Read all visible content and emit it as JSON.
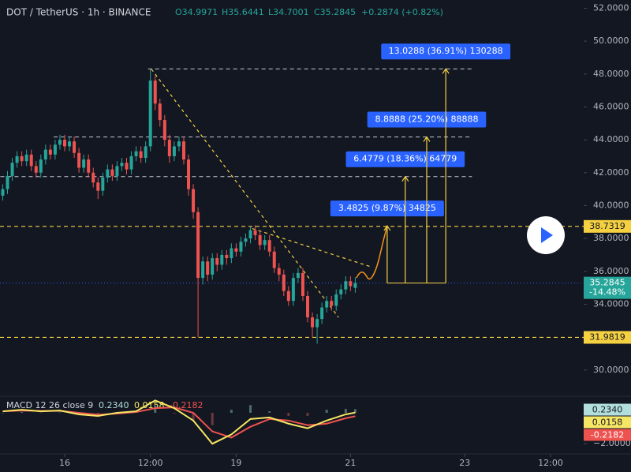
{
  "chart_data": {
    "type": "candlestick",
    "header": {
      "symbol": "DOT / TetherUS · 1h · BINANCE",
      "open": "O34.9971",
      "high": "H35.6441",
      "low": "L34.7001",
      "close": "C35.2845",
      "change": "+0.2874 (+0.82%)"
    },
    "up_color": "#26a69a",
    "down_color": "#ef5350",
    "x": [
      -26,
      -24,
      -22,
      -20,
      -18,
      -16,
      -14,
      -12,
      -10,
      -8,
      -6,
      -4,
      -2,
      0,
      2,
      4,
      6,
      8,
      10,
      12,
      14,
      16,
      18,
      20,
      22,
      24,
      26,
      28,
      30,
      32,
      34,
      36,
      38,
      40,
      42,
      44,
      46,
      48,
      50,
      52,
      54,
      56,
      58,
      60,
      62,
      64,
      66,
      68,
      70,
      72,
      74,
      76,
      78,
      80,
      82,
      84,
      86,
      88,
      90,
      92,
      94,
      96,
      98,
      100,
      102,
      104,
      106,
      108,
      110,
      112,
      114,
      116,
      118,
      120,
      122
    ],
    "open": [
      40.6,
      41.0,
      41.8,
      42.6,
      43.0,
      42.7,
      43.1,
      42.4,
      42.0,
      42.8,
      43.4,
      43.1,
      43.7,
      44.0,
      43.6,
      43.9,
      43.2,
      42.3,
      42.8,
      42.0,
      41.4,
      40.9,
      41.7,
      42.2,
      41.8,
      42.4,
      42.6,
      42.2,
      43.0,
      43.3,
      42.9,
      43.6,
      47.6,
      46.2,
      45.2,
      44.0,
      43.0,
      43.6,
      43.9,
      42.8,
      41.0,
      39.6,
      35.6,
      36.6,
      35.8,
      36.8,
      36.4,
      37.0,
      36.8,
      37.4,
      37.2,
      37.8,
      38.0,
      38.5,
      38.2,
      37.6,
      37.9,
      37.2,
      36.2,
      35.8,
      34.8,
      34.2,
      35.6,
      35.9,
      34.5,
      33.2,
      32.6,
      33.1,
      33.8,
      34.2,
      33.9,
      34.6,
      34.9,
      35.4,
      34.9971
    ],
    "high": [
      41.3,
      42.1,
      42.9,
      43.3,
      43.3,
      43.4,
      43.4,
      42.7,
      43.1,
      43.7,
      43.7,
      44.0,
      44.3,
      44.3,
      44.2,
      44.2,
      43.5,
      43.1,
      43.1,
      42.3,
      41.7,
      42.0,
      42.5,
      42.5,
      42.7,
      42.9,
      42.9,
      43.3,
      43.6,
      43.6,
      43.9,
      48.3,
      47.9,
      46.5,
      45.5,
      44.3,
      43.9,
      44.2,
      44.2,
      43.1,
      41.3,
      39.9,
      36.9,
      36.9,
      37.1,
      37.1,
      37.3,
      37.3,
      37.7,
      37.7,
      38.1,
      38.3,
      38.73,
      38.8,
      38.5,
      38.2,
      38.2,
      37.5,
      36.5,
      36.1,
      35.1,
      35.9,
      36.2,
      36.2,
      34.8,
      33.5,
      33.4,
      34.1,
      34.5,
      34.5,
      34.9,
      35.2,
      35.7,
      35.7,
      35.6441
    ],
    "low": [
      40.3,
      40.7,
      41.5,
      42.3,
      42.4,
      42.4,
      42.1,
      41.7,
      41.7,
      42.5,
      42.8,
      42.8,
      43.4,
      43.3,
      43.3,
      42.9,
      42.0,
      42.0,
      41.7,
      41.1,
      40.4,
      40.6,
      41.4,
      41.5,
      41.5,
      42.1,
      41.9,
      41.9,
      42.7,
      42.6,
      42.6,
      43.3,
      45.8,
      44.8,
      43.6,
      42.6,
      42.7,
      43.3,
      42.5,
      40.6,
      39.2,
      31.98,
      35.2,
      35.4,
      35.5,
      36.0,
      36.1,
      36.4,
      36.5,
      36.9,
      36.9,
      37.5,
      37.7,
      37.9,
      37.3,
      37.3,
      36.9,
      35.9,
      35.4,
      34.5,
      33.9,
      33.9,
      35.3,
      34.2,
      32.9,
      31.98,
      31.6,
      32.8,
      33.5,
      33.6,
      33.6,
      34.3,
      34.6,
      34.8,
      34.7001
    ],
    "close": [
      41.0,
      41.8,
      42.6,
      43.0,
      42.7,
      43.1,
      42.4,
      42.0,
      42.8,
      43.4,
      43.1,
      43.7,
      44.0,
      43.6,
      43.9,
      43.2,
      42.3,
      42.8,
      42.0,
      41.4,
      40.9,
      41.7,
      42.2,
      41.8,
      42.4,
      42.6,
      42.2,
      43.0,
      43.3,
      42.9,
      43.6,
      47.6,
      46.2,
      45.2,
      44.0,
      43.0,
      43.6,
      43.9,
      42.8,
      41.0,
      39.6,
      35.6,
      36.6,
      35.8,
      36.8,
      36.4,
      37.0,
      36.8,
      37.4,
      37.2,
      37.8,
      38.0,
      38.5,
      38.2,
      37.6,
      37.9,
      37.2,
      36.2,
      35.8,
      34.8,
      34.2,
      35.6,
      35.9,
      34.5,
      33.2,
      32.6,
      33.1,
      33.8,
      34.2,
      33.9,
      34.6,
      34.9,
      35.4,
      35.1,
      35.2845
    ],
    "xlim": [
      -27.15,
      217.9
    ],
    "xticks": [
      {
        "value": 0,
        "label": "16"
      },
      {
        "value": 36,
        "label": "12:00"
      },
      {
        "value": 72,
        "label": "19"
      },
      {
        "value": 120,
        "label": "21"
      },
      {
        "value": 168,
        "label": "23"
      },
      {
        "value": 204,
        "label": "12:00"
      }
    ],
    "ylim": [
      28.5,
      52.5
    ],
    "yticks": [
      {
        "value": 30,
        "label": "30.0000"
      },
      {
        "value": 32,
        "label": "32.0000"
      },
      {
        "value": 34,
        "label": "34.0000"
      },
      {
        "value": 36,
        "label": "36.0000"
      },
      {
        "value": 38,
        "label": "38.0000"
      },
      {
        "value": 40,
        "label": "40.0000"
      },
      {
        "value": 42,
        "label": "42.0000"
      },
      {
        "value": 44,
        "label": "44.0000"
      },
      {
        "value": 46,
        "label": "46.0000"
      },
      {
        "value": 48,
        "label": "48.0000"
      },
      {
        "value": 50,
        "label": "50.0000"
      },
      {
        "value": 52,
        "label": "52.0000"
      }
    ],
    "last_price": {
      "value": 35.2845,
      "label": "35.2845",
      "change": "-14.48%",
      "color": "#26a69a"
    },
    "levels": [
      {
        "value": 38.7319,
        "label": "38.7319",
        "color": "#f5d142"
      },
      {
        "value": 31.9819,
        "label": "31.9819",
        "color": "#f5d142"
      }
    ],
    "guides": [
      {
        "value": 48.31,
        "x": [
          35,
          171
        ]
      },
      {
        "value": 44.17,
        "x": [
          -4.6,
          171
        ]
      },
      {
        "value": 41.76,
        "x": [
          -27,
          171
        ]
      }
    ],
    "trendlines": [
      {
        "x": [
          36.4,
          115
        ],
        "y": [
          48.3,
          33.2
        ]
      },
      {
        "x": [
          78.8,
          128.5
        ],
        "y": [
          38.6,
          36.28
        ]
      }
    ],
    "targets": [
      {
        "label": "3.4825 (9.87%) 34825",
        "value": 38.767,
        "x": 135.4
      },
      {
        "label": "6.4779 (18.36%) 64779",
        "value": 41.762,
        "x": 143
      },
      {
        "label": "8.8888 (25.20%) 88888",
        "value": 44.173,
        "x": 152
      },
      {
        "label": "13.0288 (36.91%) 130288",
        "value": 48.313,
        "x": 160
      }
    ],
    "macd": {
      "title": "MACD 12 26 close 9",
      "ylim": [
        -2.5,
        0.92
      ],
      "yticks": [
        {
          "value": -2,
          "label": "−2.0000"
        }
      ],
      "x": [
        -26,
        -18,
        -10,
        -2,
        6,
        14,
        22,
        30,
        38,
        46,
        54,
        62,
        70,
        78,
        86,
        94,
        102,
        110,
        118,
        122
      ],
      "histogram": {
        "name": "0.2340",
        "color": "#b2dfdb",
        "values": [
          0,
          0.05,
          -0.02,
          0.02,
          -0.1,
          -0.08,
          0.05,
          0.05,
          0.5,
          -0.05,
          -0.5,
          -0.8,
          0.2,
          0.5,
          0.1,
          -0.2,
          -0.2,
          0.2,
          0.25,
          0.234
        ]
      },
      "macd_line": {
        "name": "0.0158",
        "color": "#f5e663",
        "values": [
          0.1,
          0.2,
          0.1,
          0.15,
          -0.1,
          -0.2,
          0,
          0.1,
          0.8,
          0.3,
          -0.5,
          -2.0,
          -1.4,
          -0.4,
          -0.3,
          -0.7,
          -1.0,
          -0.5,
          -0.1,
          0.0158
        ]
      },
      "signal_line": {
        "name": "-0.2182",
        "color": "#ef5350",
        "values": [
          0.1,
          0.15,
          0.12,
          0.13,
          0,
          -0.12,
          -0.05,
          0.05,
          0.3,
          0.35,
          0,
          -1.2,
          -1.6,
          -0.9,
          -0.4,
          -0.5,
          -0.8,
          -0.7,
          -0.35,
          -0.2182
        ]
      }
    }
  }
}
